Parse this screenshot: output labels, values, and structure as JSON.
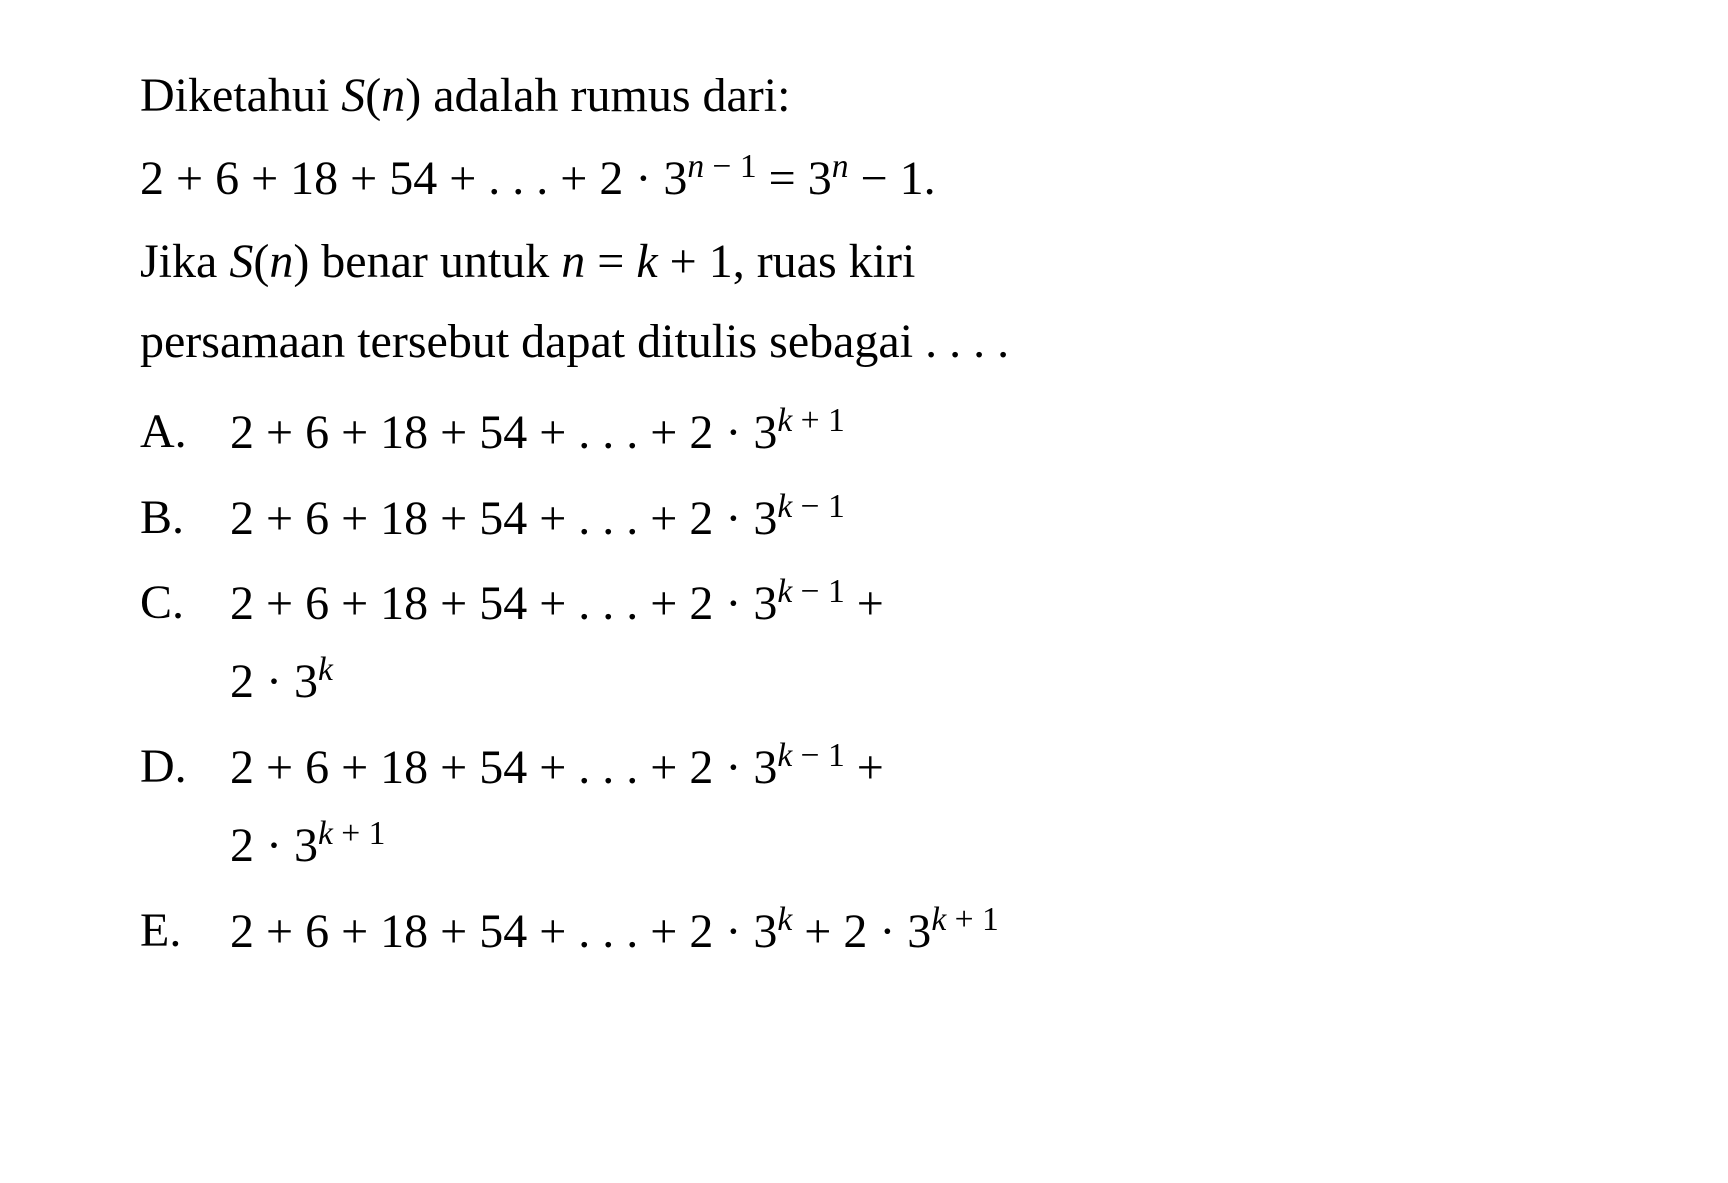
{
  "text_color": "#000000",
  "background_color": "#ffffff",
  "font_family": "Times New Roman",
  "base_fontsize": 48,
  "intro": {
    "prefix": "Diketahui ",
    "fn": "S",
    "arg": "n",
    "suffix": " adalah rumus dari:"
  },
  "formula": {
    "lhs_start": "2 + 6 + 18 + 54 + . . . + 2 · 3",
    "lhs_exp_var": "n",
    "lhs_exp_op": " − 1",
    "eq": " = 3",
    "rhs_exp": "n",
    "rhs_tail": " − 1."
  },
  "question": {
    "line1_prefix": "Jika ",
    "line1_fn": "S",
    "line1_arg": "n",
    "line1_mid": " benar untuk ",
    "line1_var_n": "n",
    "line1_eq": " = ",
    "line1_var_k": "k",
    "line1_plus": " + 1, ruas kiri",
    "line2": "persamaan tersebut dapat ditulis sebagai . . . ."
  },
  "options": [
    {
      "label": "A.",
      "base": "2 + 6 + 18 + 54 + . . . + 2 · 3",
      "exp_var": "k",
      "exp_op": " + 1",
      "cont_line2": ""
    },
    {
      "label": "B.",
      "base": "2 + 6 + 18 + 54 + . . . + 2 · 3",
      "exp_var": "k",
      "exp_op": " − 1",
      "cont_line2": ""
    },
    {
      "label": "C.",
      "base": "2 + 6 + 18 + 54 + . . . + 2 · 3",
      "exp_var": "k",
      "exp_op": " − 1",
      "tail": " +",
      "line2_base": "2 · 3",
      "line2_exp_var": "k",
      "line2_exp_op": ""
    },
    {
      "label": "D.",
      "base": "2 + 6 + 18 + 54 + . . . + 2 · 3",
      "exp_var": "k",
      "exp_op": " − 1",
      "tail": " +",
      "line2_base": "2 · 3",
      "line2_exp_var": "k",
      "line2_exp_op": " + 1"
    },
    {
      "label": "E.",
      "base": "2 + 6 + 18 + 54 + . . . + 2 · 3",
      "exp_var": "k",
      "exp_op": "",
      "tail": " + 2 · 3",
      "tail_exp_var": "k",
      "tail_exp_op": " + 1"
    }
  ]
}
